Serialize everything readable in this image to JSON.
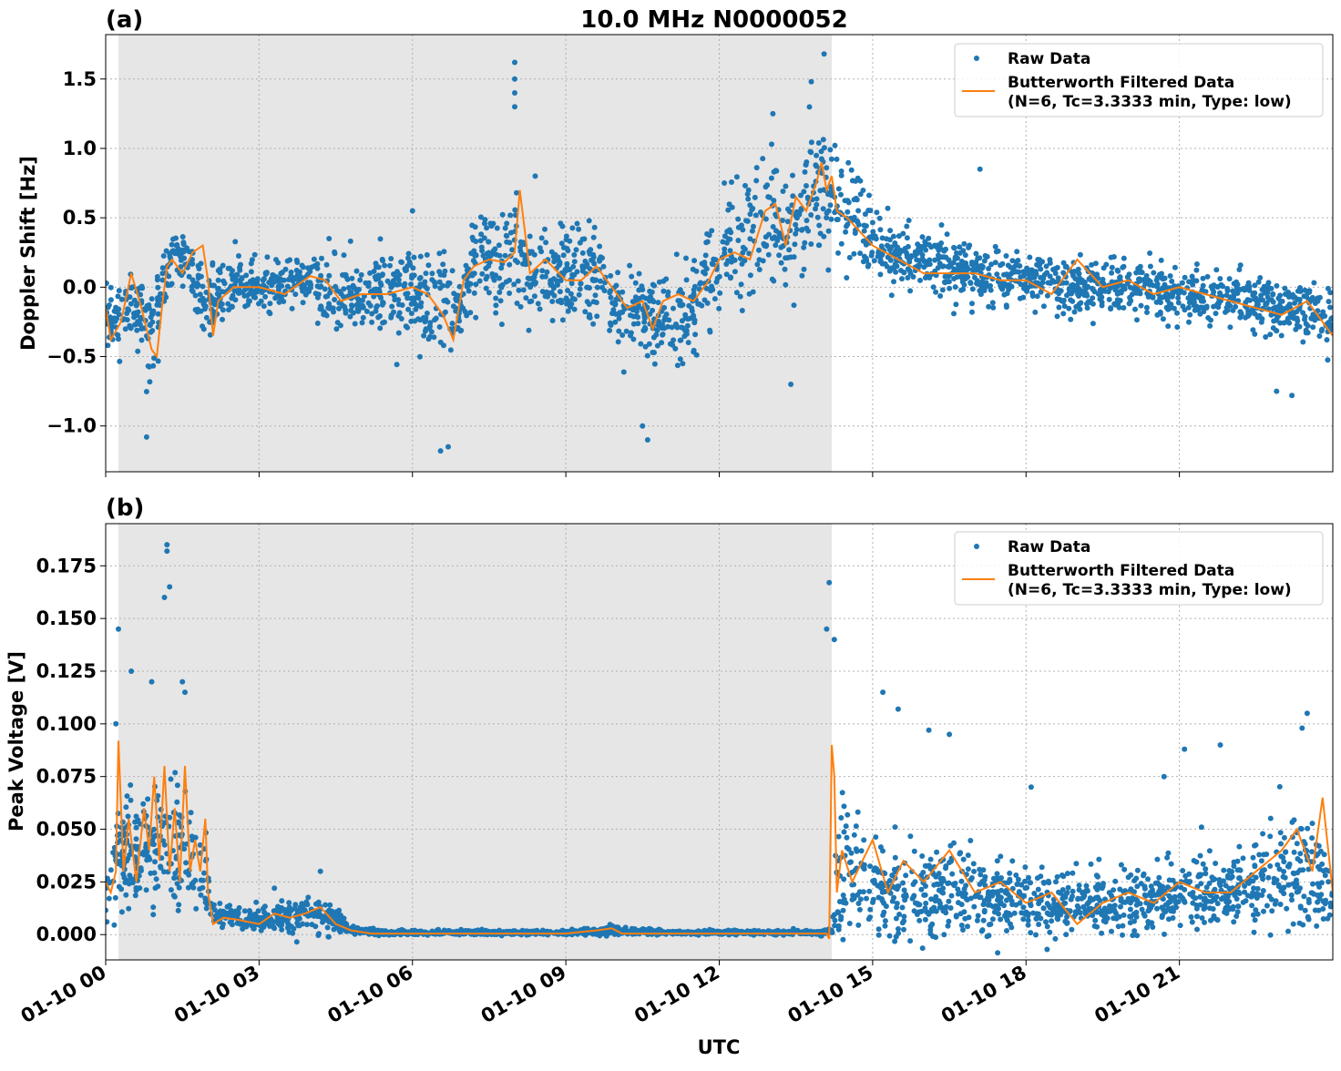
{
  "figure_title": "10.0 MHz N0000052",
  "xlabel": "UTC",
  "x_ticks": [
    "01-10 00",
    "01-10 03",
    "01-10 06",
    "01-10 09",
    "01-10 12",
    "01-10 15",
    "01-10 18",
    "01-10 21"
  ],
  "colors": {
    "raw": "#1f77b4",
    "filtered": "#ff7f0e",
    "shade": "#e6e6e6",
    "grid": "#b0b0b0"
  },
  "chart_data": [
    {
      "panel_label": "(a)",
      "type": "line",
      "title": "10.0 MHz N0000052",
      "xlabel": "",
      "ylabel": "Doppler Shift [Hz]",
      "x_unit": "hours UTC",
      "xlim": [
        0,
        24
      ],
      "ylim": [
        -1.33,
        1.82
      ],
      "y_ticks": [
        {
          "value": 1.5,
          "label": "1.5"
        },
        {
          "value": 1.0,
          "label": "1.0"
        },
        {
          "value": 0.5,
          "label": "0.5"
        },
        {
          "value": 0.0,
          "label": "0.0"
        },
        {
          "value": -0.5,
          "label": "−0.5"
        },
        {
          "value": -1.0,
          "label": "−1.0"
        }
      ],
      "grid": true,
      "shaded_region": [
        0.25,
        14.2
      ],
      "legend": {
        "placement": "top-right",
        "entries": [
          "Raw Data",
          "Butterworth Filtered Data",
          "(N=6, Tc=3.3333 min, Type: low)"
        ]
      },
      "series": [
        {
          "name": "Raw Data",
          "style": "scatter",
          "x": [
            0,
            0.5,
            0.9,
            1.2,
            1.5,
            1.7,
            2.0,
            2.3,
            3.0,
            4.0,
            4.5,
            5.0,
            5.8,
            6.5,
            6.9,
            7.2,
            7.8,
            8.0,
            8.3,
            8.7,
            9.0,
            9.5,
            10.0,
            10.6,
            11.0,
            11.3,
            11.6,
            11.9,
            12.5,
            13.0,
            13.3,
            13.7,
            14.0,
            14.2,
            14.5,
            15.0,
            15.5,
            16.0,
            16.5,
            17.0,
            18.0,
            19.0,
            20.0,
            21.0,
            22.0,
            22.5,
            23.0,
            23.5,
            24.0
          ],
          "center": [
            -0.25,
            -0.1,
            -0.35,
            0.15,
            0.2,
            0.1,
            -0.15,
            0.0,
            0.0,
            0.05,
            -0.05,
            -0.05,
            -0.05,
            -0.15,
            -0.25,
            0.2,
            0.15,
            0.3,
            0.1,
            0.05,
            0.1,
            0.1,
            -0.15,
            -0.2,
            -0.25,
            -0.2,
            -0.1,
            0.2,
            0.35,
            0.5,
            0.3,
            0.55,
            0.75,
            0.7,
            0.5,
            0.35,
            0.25,
            0.2,
            0.15,
            0.1,
            0.05,
            0.0,
            0.0,
            -0.05,
            -0.1,
            -0.1,
            -0.15,
            -0.15,
            -0.3
          ],
          "spread": [
            0.2,
            0.22,
            0.3,
            0.25,
            0.22,
            0.22,
            0.25,
            0.22,
            0.2,
            0.2,
            0.25,
            0.3,
            0.3,
            0.35,
            0.4,
            0.35,
            0.35,
            0.4,
            0.35,
            0.35,
            0.3,
            0.35,
            0.3,
            0.3,
            0.35,
            0.35,
            0.35,
            0.35,
            0.4,
            0.45,
            0.45,
            0.45,
            0.45,
            0.4,
            0.3,
            0.25,
            0.22,
            0.2,
            0.2,
            0.2,
            0.18,
            0.2,
            0.2,
            0.18,
            0.18,
            0.18,
            0.2,
            0.22,
            0.25
          ],
          "outliers": [
            [
              8.0,
              1.62
            ],
            [
              8.0,
              1.5
            ],
            [
              8.0,
              1.4
            ],
            [
              8.0,
              1.3
            ],
            [
              14.05,
              1.68
            ],
            [
              13.05,
              1.25
            ],
            [
              13.8,
              1.48
            ],
            [
              0.8,
              -1.08
            ],
            [
              6.55,
              -1.18
            ],
            [
              6.7,
              -1.15
            ],
            [
              10.6,
              -1.1
            ],
            [
              10.5,
              -1.0
            ],
            [
              13.4,
              -0.7
            ],
            [
              6.0,
              0.55
            ],
            [
              8.4,
              0.8
            ],
            [
              17.1,
              0.85
            ],
            [
              23.2,
              -0.78
            ],
            [
              22.9,
              -0.75
            ],
            [
              12.1,
              0.75
            ]
          ]
        },
        {
          "name": "Butterworth Filtered Data",
          "style": "line",
          "x": [
            0,
            0.1,
            0.3,
            0.5,
            0.7,
            0.9,
            1.0,
            1.1,
            1.2,
            1.3,
            1.5,
            1.7,
            1.9,
            2.0,
            2.1,
            2.2,
            2.5,
            3.0,
            3.5,
            4.0,
            4.3,
            4.6,
            5.0,
            5.5,
            6.0,
            6.3,
            6.6,
            6.8,
            7.0,
            7.2,
            7.5,
            7.8,
            8.0,
            8.1,
            8.3,
            8.6,
            9.0,
            9.3,
            9.6,
            9.9,
            10.2,
            10.5,
            10.7,
            10.9,
            11.2,
            11.5,
            11.8,
            12.0,
            12.3,
            12.6,
            12.9,
            13.1,
            13.3,
            13.5,
            13.7,
            13.9,
            14.0,
            14.1,
            14.2,
            14.3,
            14.5,
            15.0,
            15.5,
            16.0,
            16.5,
            17.0,
            17.5,
            18.0,
            18.5,
            19.0,
            19.5,
            20.0,
            20.5,
            21.0,
            21.5,
            22.0,
            22.5,
            23.0,
            23.5,
            24.0
          ],
          "y": [
            -0.15,
            -0.38,
            -0.25,
            0.1,
            -0.15,
            -0.45,
            -0.5,
            -0.15,
            0.15,
            0.2,
            0.1,
            0.25,
            0.3,
            0.05,
            -0.35,
            -0.1,
            0.0,
            0.0,
            -0.05,
            0.08,
            0.05,
            -0.1,
            -0.05,
            -0.05,
            0.0,
            -0.05,
            -0.2,
            -0.38,
            0.05,
            0.15,
            0.2,
            0.18,
            0.25,
            0.7,
            0.1,
            0.2,
            0.05,
            0.05,
            0.15,
            0.0,
            -0.15,
            -0.1,
            -0.3,
            -0.1,
            -0.05,
            -0.1,
            0.05,
            0.2,
            0.25,
            0.2,
            0.55,
            0.6,
            0.3,
            0.65,
            0.55,
            0.75,
            0.9,
            0.7,
            0.8,
            0.55,
            0.5,
            0.3,
            0.2,
            0.1,
            0.1,
            0.1,
            0.05,
            0.05,
            -0.05,
            0.2,
            0.0,
            0.05,
            -0.05,
            0.0,
            -0.05,
            -0.1,
            -0.15,
            -0.2,
            -0.1,
            -0.35
          ]
        }
      ]
    },
    {
      "panel_label": "(b)",
      "type": "line",
      "title": "",
      "xlabel": "UTC",
      "ylabel": "Peak Voltage [V]",
      "x_unit": "hours UTC",
      "xlim": [
        0,
        24
      ],
      "ylim": [
        -0.012,
        0.195
      ],
      "y_ticks": [
        {
          "value": 0.175,
          "label": "0.175"
        },
        {
          "value": 0.15,
          "label": "0.150"
        },
        {
          "value": 0.125,
          "label": "0.125"
        },
        {
          "value": 0.1,
          "label": "0.100"
        },
        {
          "value": 0.075,
          "label": "0.075"
        },
        {
          "value": 0.05,
          "label": "0.050"
        },
        {
          "value": 0.025,
          "label": "0.025"
        },
        {
          "value": 0.0,
          "label": "0.000"
        }
      ],
      "grid": true,
      "shaded_region": [
        0.25,
        14.2
      ],
      "legend": {
        "placement": "top-right",
        "entries": [
          "Raw Data",
          "Butterworth Filtered Data",
          "(N=6, Tc=3.3333 min, Type: low)"
        ]
      },
      "series": [
        {
          "name": "Raw Data",
          "style": "scatter",
          "x": [
            0,
            0.3,
            0.6,
            0.9,
            1.2,
            1.5,
            1.8,
            2.0,
            2.1,
            2.5,
            3.0,
            3.5,
            4.0,
            4.3,
            4.8,
            5.5,
            7.0,
            9.0,
            9.9,
            11.0,
            13.0,
            14.0,
            14.2,
            14.35,
            14.6,
            15.0,
            15.5,
            16.0,
            16.5,
            17.0,
            18.0,
            19.0,
            20.0,
            21.0,
            22.0,
            22.5,
            23.0,
            23.5,
            24.0
          ],
          "center": [
            0.02,
            0.04,
            0.035,
            0.04,
            0.045,
            0.04,
            0.035,
            0.03,
            0.01,
            0.008,
            0.007,
            0.008,
            0.01,
            0.01,
            0.002,
            0.001,
            0.001,
            0.001,
            0.002,
            0.001,
            0.001,
            0.001,
            0.002,
            0.03,
            0.03,
            0.025,
            0.022,
            0.02,
            0.02,
            0.02,
            0.015,
            0.015,
            0.015,
            0.018,
            0.02,
            0.022,
            0.03,
            0.03,
            0.02
          ],
          "spread": [
            0.015,
            0.025,
            0.025,
            0.03,
            0.035,
            0.03,
            0.025,
            0.025,
            0.006,
            0.005,
            0.005,
            0.007,
            0.009,
            0.009,
            0.001,
            0.0005,
            0.0005,
            0.0005,
            0.001,
            0.0005,
            0.0005,
            0.0005,
            0.001,
            0.035,
            0.025,
            0.02,
            0.02,
            0.02,
            0.02,
            0.02,
            0.015,
            0.015,
            0.015,
            0.015,
            0.015,
            0.02,
            0.025,
            0.03,
            0.02
          ],
          "outliers": [
            [
              1.2,
              0.185
            ],
            [
              1.2,
              0.182
            ],
            [
              1.25,
              0.165
            ],
            [
              1.15,
              0.16
            ],
            [
              0.25,
              0.145
            ],
            [
              0.5,
              0.125
            ],
            [
              0.9,
              0.12
            ],
            [
              1.5,
              0.12
            ],
            [
              1.55,
              0.115
            ],
            [
              0.2,
              0.1
            ],
            [
              14.15,
              0.167
            ],
            [
              14.1,
              0.145
            ],
            [
              14.25,
              0.14
            ],
            [
              15.2,
              0.115
            ],
            [
              15.5,
              0.107
            ],
            [
              16.5,
              0.095
            ],
            [
              16.1,
              0.097
            ],
            [
              21.8,
              0.09
            ],
            [
              21.1,
              0.088
            ],
            [
              23.5,
              0.105
            ],
            [
              23.4,
              0.098
            ],
            [
              20.7,
              0.075
            ],
            [
              18.1,
              0.07
            ],
            [
              4.2,
              0.03
            ],
            [
              3.3,
              0.022
            ]
          ]
        },
        {
          "name": "Butterworth Filtered Data",
          "style": "line",
          "x": [
            0,
            0.1,
            0.2,
            0.25,
            0.35,
            0.45,
            0.6,
            0.75,
            0.85,
            0.95,
            1.05,
            1.15,
            1.25,
            1.35,
            1.45,
            1.55,
            1.65,
            1.75,
            1.85,
            1.95,
            2.0,
            2.1,
            2.3,
            2.6,
            3.0,
            3.3,
            3.6,
            3.9,
            4.2,
            4.5,
            4.8,
            5.2,
            6.0,
            7.0,
            8.0,
            9.0,
            9.6,
            9.9,
            10.1,
            10.5,
            11.0,
            12.0,
            13.0,
            13.8,
            14.1,
            14.15,
            14.2,
            14.25,
            14.3,
            14.4,
            14.6,
            15.0,
            15.3,
            15.6,
            16.0,
            16.5,
            17.0,
            17.5,
            18.0,
            18.5,
            19.0,
            19.5,
            20.0,
            20.5,
            21.0,
            21.5,
            22.0,
            22.5,
            23.0,
            23.3,
            23.6,
            23.8,
            24.0
          ],
          "y": [
            0.025,
            0.02,
            0.03,
            0.092,
            0.03,
            0.055,
            0.025,
            0.06,
            0.04,
            0.075,
            0.035,
            0.08,
            0.03,
            0.06,
            0.025,
            0.08,
            0.03,
            0.045,
            0.03,
            0.055,
            0.02,
            0.005,
            0.008,
            0.007,
            0.005,
            0.01,
            0.008,
            0.01,
            0.013,
            0.005,
            0.002,
            0.0005,
            0.0005,
            0.0005,
            0.0005,
            0.0005,
            0.002,
            0.003,
            0.0005,
            0.0005,
            0.0005,
            0.0005,
            0.0005,
            0.0005,
            0.0005,
            -0.002,
            0.09,
            0.075,
            0.02,
            0.04,
            0.025,
            0.045,
            0.02,
            0.035,
            0.025,
            0.04,
            0.02,
            0.025,
            0.015,
            0.02,
            0.005,
            0.015,
            0.02,
            0.015,
            0.025,
            0.02,
            0.02,
            0.03,
            0.04,
            0.05,
            0.03,
            0.065,
            0.02
          ]
        }
      ]
    }
  ]
}
